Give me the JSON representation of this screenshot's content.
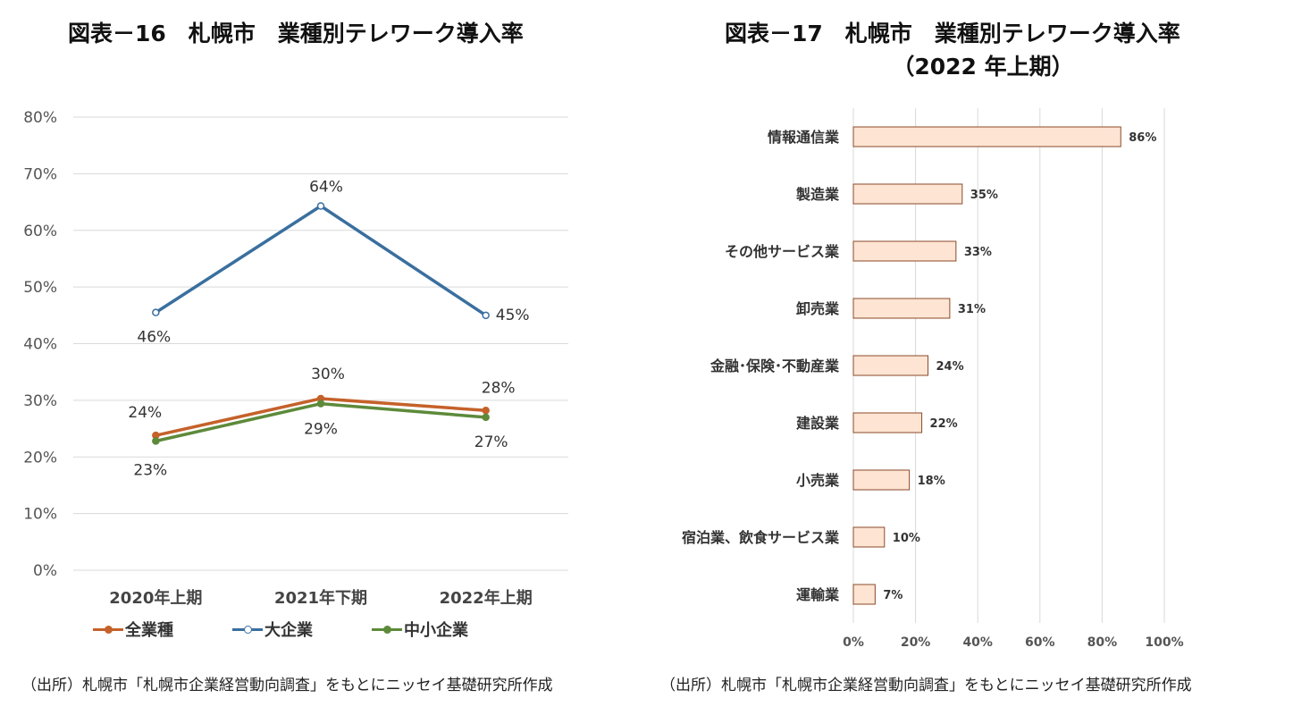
{
  "titles": {
    "left": "図表－16　札幌市　業種別テレワーク導入率",
    "right_line1": "図表－17　札幌市　業種別テレワーク導入率",
    "right_line2": "（2022 年上期）"
  },
  "sources": {
    "left": "（出所）札幌市「札幌市企業経営動向調査」をもとにニッセイ基礎研究所作成",
    "right": "（出所）札幌市「札幌市企業経営動向調査」をもとにニッセイ基礎研究所作成"
  },
  "colors": {
    "all": "#c5612a",
    "large": "#3a6f9f",
    "sme": "#5d8a3a",
    "bar_fill": "#fde4d3",
    "bar_stroke": "#8a4a2a",
    "grid": "#d9d9d9"
  },
  "chart_data": [
    {
      "type": "line",
      "title": "図表－16　札幌市　業種別テレワーク導入率",
      "categories": [
        "2020年上期",
        "2021年下期",
        "2022年上期"
      ],
      "ylim": [
        0,
        80
      ],
      "yticks": [
        "0%",
        "10%",
        "20%",
        "30%",
        "40%",
        "50%",
        "60%",
        "70%",
        "80%"
      ],
      "series": [
        {
          "name": "全業種",
          "values": [
            23.8,
            30.3,
            28.2
          ],
          "labels": [
            "24%",
            "30%",
            "28%"
          ]
        },
        {
          "name": "大企業",
          "values": [
            45.5,
            64.3,
            45.0
          ],
          "labels": [
            "46%",
            "64%",
            "45%"
          ]
        },
        {
          "name": "中小企業",
          "values": [
            22.8,
            29.4,
            27.0
          ],
          "labels": [
            "23%",
            "29%",
            "27%"
          ]
        }
      ],
      "legend": "bottom",
      "grid": true
    },
    {
      "type": "bar",
      "orientation": "horizontal",
      "title": "図表－17　札幌市　業種別テレワーク導入率（2022 年上期）",
      "categories": [
        "情報通信業",
        "製造業",
        "その他サービス業",
        "卸売業",
        "金融･保険･不動産業",
        "建設業",
        "小売業",
        "宿泊業、飲食サービス業",
        "運輸業"
      ],
      "values": [
        86,
        35,
        33,
        31,
        24,
        22,
        18,
        10,
        7
      ],
      "labels": [
        "86%",
        "35%",
        "33%",
        "31%",
        "24%",
        "22%",
        "18%",
        "10%",
        "7%"
      ],
      "xlim": [
        0,
        100
      ],
      "xticks": [
        "0%",
        "20%",
        "40%",
        "60%",
        "80%",
        "100%"
      ],
      "grid": true
    }
  ]
}
